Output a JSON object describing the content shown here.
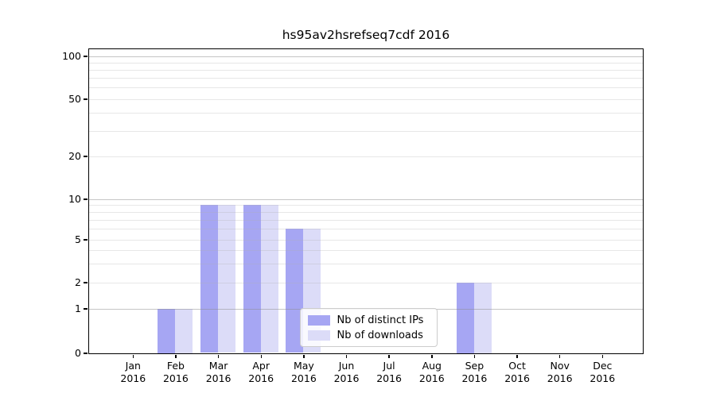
{
  "chart_data": {
    "type": "bar",
    "title": "hs95av2hsrefseq7cdf 2016",
    "x_tick_month_labels": [
      "Jan",
      "Feb",
      "Mar",
      "Apr",
      "May",
      "Jun",
      "Jul",
      "Aug",
      "Sep",
      "Oct",
      "Nov",
      "Dec"
    ],
    "x_tick_year_label": "2016",
    "series": [
      {
        "name": "Nb of distinct IPs",
        "color": "#a6a6f3",
        "values": [
          0,
          1,
          9,
          9,
          6,
          0,
          0,
          0,
          2,
          0,
          0,
          0
        ]
      },
      {
        "name": "Nb of downloads",
        "color": "#dcdcf8",
        "values": [
          0,
          1,
          9,
          9,
          6,
          0,
          0,
          0,
          2,
          0,
          0,
          0
        ]
      }
    ],
    "y_axis": {
      "scale": "log-with-zero-baseline",
      "tick_values": [
        0,
        1,
        2,
        5,
        10,
        20,
        50,
        100
      ],
      "tick_labels": [
        "0",
        "1",
        "2",
        "5",
        "10",
        "20",
        "50",
        "100"
      ],
      "major_gridline_values": [
        1,
        10,
        100
      ],
      "minor_gridline_values": [
        2,
        3,
        4,
        5,
        6,
        7,
        8,
        9,
        20,
        30,
        40,
        50,
        60,
        70,
        80,
        90
      ],
      "ymin": 0,
      "ymax": 100
    },
    "grid": "on",
    "legend_location": "lower center-right inside plot"
  }
}
